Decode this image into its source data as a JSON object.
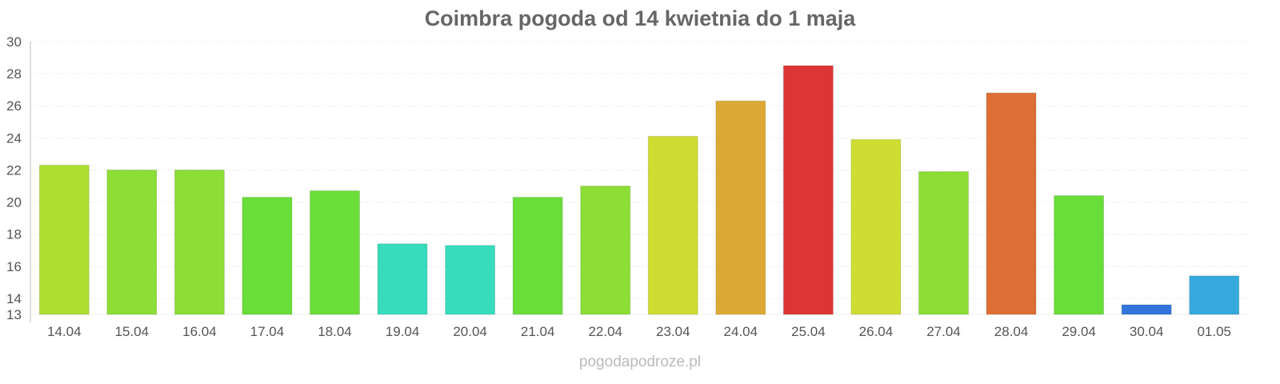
{
  "chart_data": {
    "type": "bar",
    "title": "Coimbra pogoda od 14 kwietnia do 1 maja",
    "categories": [
      "14.04",
      "15.04",
      "16.04",
      "17.04",
      "18.04",
      "19.04",
      "20.04",
      "21.04",
      "22.04",
      "23.04",
      "24.04",
      "25.04",
      "26.04",
      "27.04",
      "28.04",
      "29.04",
      "30.04",
      "01.05"
    ],
    "values": [
      22.3,
      22.0,
      22.0,
      20.3,
      20.7,
      17.4,
      17.3,
      20.3,
      21.0,
      24.1,
      26.3,
      28.5,
      23.9,
      21.9,
      26.8,
      20.4,
      13.6,
      15.4
    ],
    "colors": [
      "#addf33",
      "#8cdd35",
      "#8cdd35",
      "#69dd38",
      "#69dd38",
      "#36dcbb",
      "#36dcbb",
      "#69dd38",
      "#8cdd35",
      "#cfdd33",
      "#dcaa34",
      "#dd3535",
      "#cfdd33",
      "#8cdd35",
      "#dd6e34",
      "#69dd38",
      "#3375dd",
      "#36aadd"
    ],
    "ylim": [
      13,
      30
    ],
    "yticks": [
      13,
      14,
      16,
      18,
      20,
      22,
      24,
      26,
      28,
      30
    ],
    "grid": true,
    "xlabel": "",
    "ylabel": ""
  },
  "footer": "pogodapodroze.pl"
}
